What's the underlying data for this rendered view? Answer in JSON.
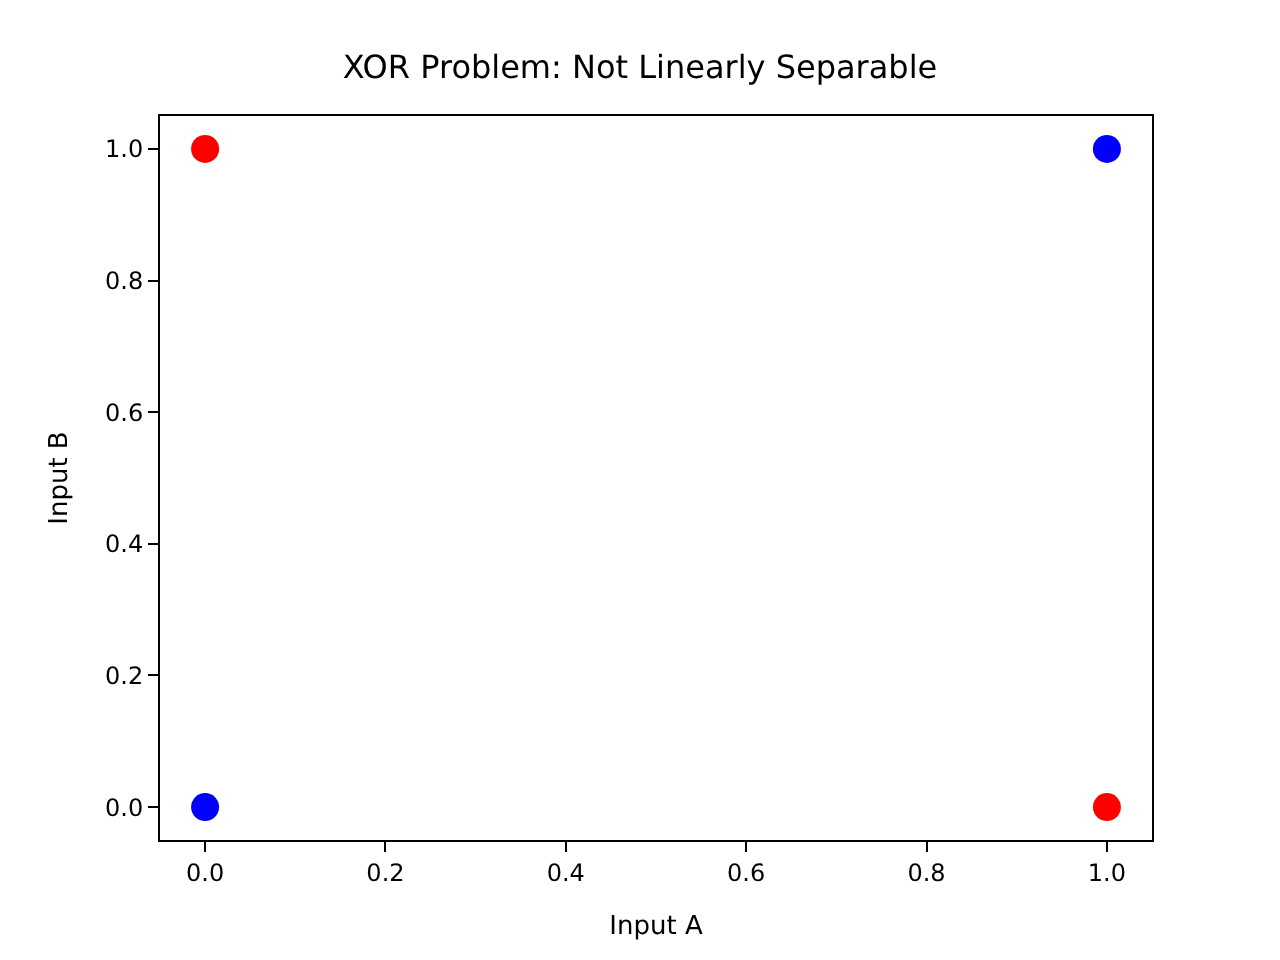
{
  "chart_data": {
    "type": "scatter",
    "title": "XOR Problem: Not Linearly Separable",
    "xlabel": "Input A",
    "ylabel": "Input B",
    "series": [
      {
        "color": "#0000ff",
        "values": [
          0,
          1
        ]
      },
      {
        "color": "#ff0000",
        "values": [
          1,
          0
        ]
      }
    ],
    "x": [
      0,
      1
    ],
    "xlim": [
      -0.05,
      1.05
    ],
    "ylim": [
      -0.05,
      1.05
    ],
    "xticks": [
      {
        "value": 0,
        "label": "0.0"
      },
      {
        "value": 0.2,
        "label": "0.2"
      },
      {
        "value": 0.4,
        "label": "0.4"
      },
      {
        "value": 0.6,
        "label": "0.6"
      },
      {
        "value": 0.8,
        "label": "0.8"
      },
      {
        "value": 1,
        "label": "1.0"
      }
    ],
    "yticks": [
      {
        "value": 0,
        "label": "0.0"
      },
      {
        "value": 0.2,
        "label": "0.2"
      },
      {
        "value": 0.4,
        "label": "0.4"
      },
      {
        "value": 0.6,
        "label": "0.6"
      },
      {
        "value": 0.8,
        "label": "0.8"
      },
      {
        "value": 1,
        "label": "1.0"
      }
    ],
    "marker": "circle"
  }
}
